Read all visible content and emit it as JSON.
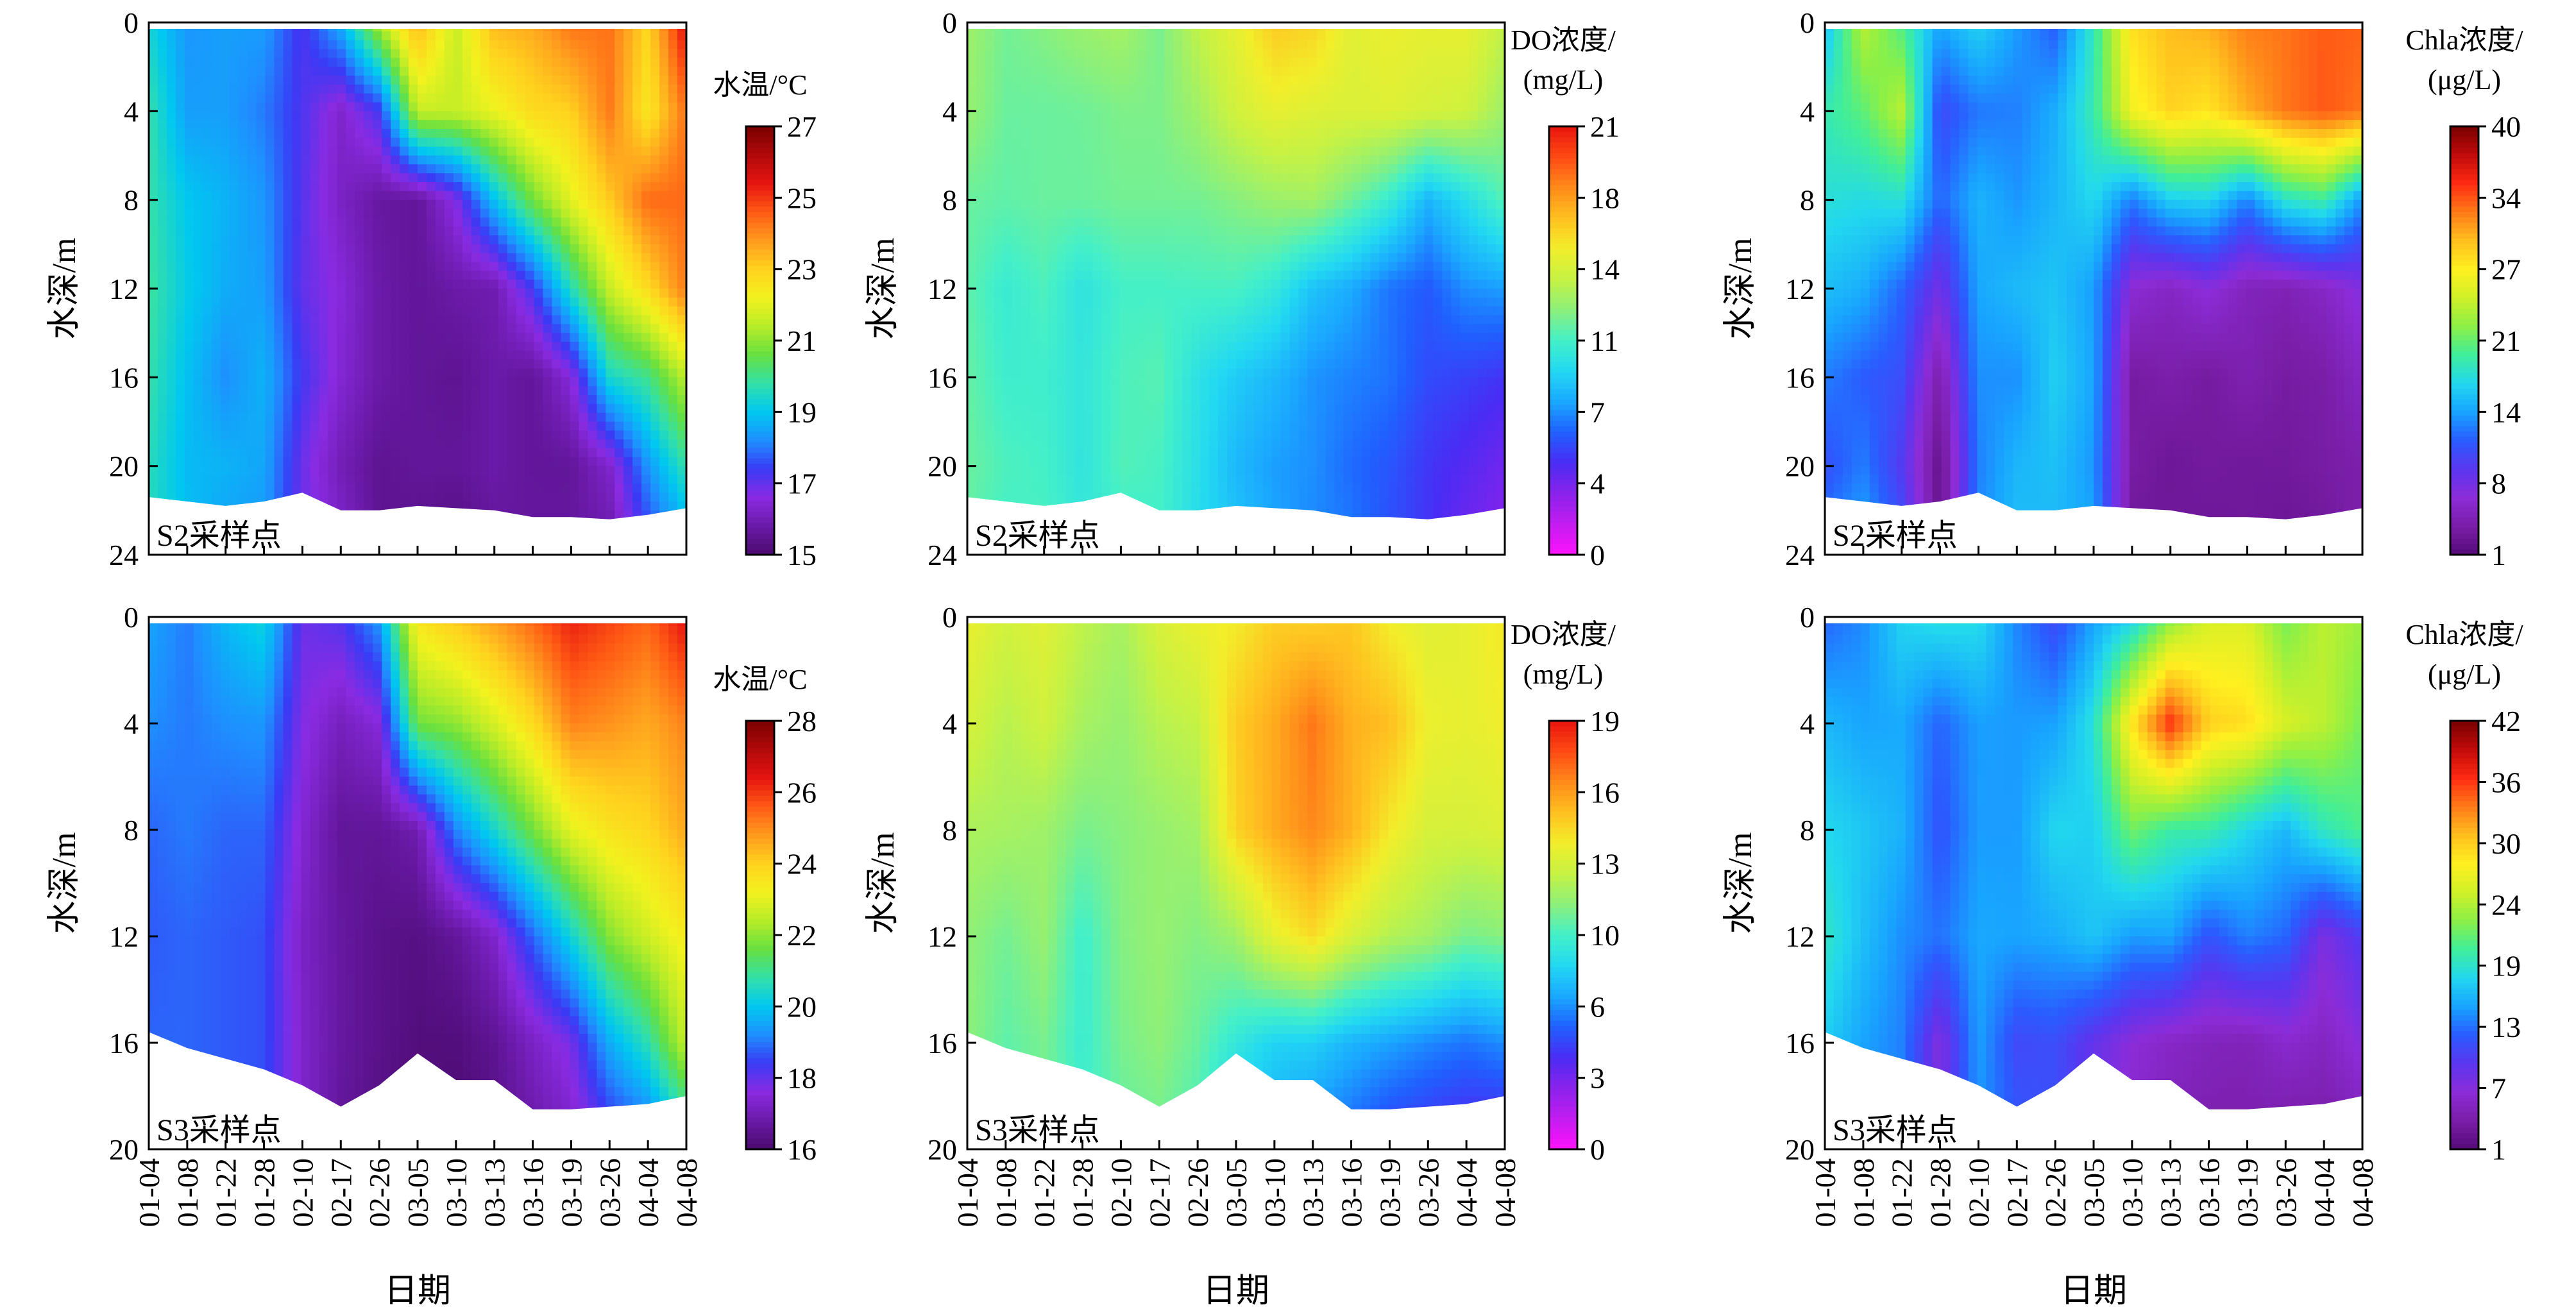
{
  "figure": {
    "x_axis_title": "日期",
    "y_axis_title": "水深/m",
    "dates": [
      "01-04",
      "01-08",
      "01-22",
      "01-28",
      "02-10",
      "02-17",
      "02-26",
      "03-05",
      "03-10",
      "03-13",
      "03-16",
      "03-19",
      "03-26",
      "04-04",
      "04-08"
    ]
  },
  "colormaps": {
    "temperature": [
      "#4b0a6e",
      "#6a1aa8",
      "#8a2be2",
      "#3a3af5",
      "#1e90ff",
      "#00c8f0",
      "#33e0a8",
      "#66e040",
      "#b8ec28",
      "#f2f21e",
      "#ffd21e",
      "#ff9a1e",
      "#ff5a14",
      "#e61410",
      "#b00a0a",
      "#7a0000"
    ],
    "do": [
      "#ff12ff",
      "#c21cf0",
      "#8a22ea",
      "#4a2cf4",
      "#2060ff",
      "#1aa8ff",
      "#22d8f2",
      "#44f0c8",
      "#8cf07a",
      "#c6f244",
      "#f2ee2a",
      "#ffc020",
      "#ff8a1a",
      "#ff4a14",
      "#e8140c"
    ],
    "chla": [
      "#560a78",
      "#7a1ea8",
      "#8c2cd8",
      "#5a36f0",
      "#2a5cff",
      "#18a4ff",
      "#22d8ee",
      "#40ee9a",
      "#8cf046",
      "#d0f028",
      "#fff020",
      "#ffbe1e",
      "#ff7a18",
      "#ff2a12",
      "#c00a0a",
      "#780000"
    ]
  },
  "chart_data": [
    {
      "type": "heatmap",
      "id": "S2-temp",
      "station_label": "S2采样点",
      "variable": "temperature",
      "colorbar_title_lines": [
        "水温/°C"
      ],
      "colorbar_ticks": [
        "15",
        "17",
        "19",
        "21",
        "23",
        "25",
        "27"
      ],
      "zmin": 15,
      "zmax": 27,
      "depth_max": 24,
      "y_ticks": [
        "0",
        "4",
        "8",
        "12",
        "16",
        "20",
        "24"
      ],
      "bottom_depth": [
        21.4,
        21.6,
        21.8,
        21.6,
        21.2,
        22.0,
        22.0,
        21.8,
        21.9,
        22.0,
        22.3,
        22.3,
        22.4,
        22.2,
        21.9
      ],
      "values": [
        [
          19.3,
          18.3,
          18.4,
          18.4,
          17.2,
          18.7,
          21.4,
          23.5,
          21.6,
          23.4,
          23.6,
          24.3,
          24.3,
          22.9,
          25.6
        ],
        [
          19.8,
          18.4,
          18.4,
          18.0,
          17.2,
          16.3,
          17.3,
          21.6,
          21.6,
          22.1,
          22.8,
          23.0,
          24.2,
          22.5,
          24.3
        ],
        [
          19.8,
          19.0,
          18.7,
          18.3,
          17.1,
          16.2,
          15.7,
          15.6,
          16.7,
          18.9,
          20.7,
          22.0,
          23.1,
          24.4,
          24.4
        ],
        [
          19.9,
          19.1,
          18.6,
          18.4,
          17.0,
          16.5,
          15.8,
          15.6,
          15.8,
          15.9,
          17.3,
          19.6,
          21.6,
          22.8,
          24.2
        ],
        [
          19.8,
          18.9,
          18.2,
          18.7,
          17.3,
          16.4,
          15.8,
          15.6,
          15.5,
          15.8,
          15.6,
          16.5,
          19.4,
          20.0,
          21.5
        ],
        [
          19.6,
          18.8,
          18.7,
          18.5,
          16.9,
          16.0,
          15.5,
          15.6,
          15.6,
          15.8,
          15.6,
          15.6,
          16.3,
          18.3,
          19.8
        ],
        [
          19.6,
          18.9,
          18.4,
          18.3,
          16.9,
          16.4,
          15.5,
          15.4,
          15.2,
          15.6,
          15.7,
          15.7,
          15.7,
          17.2,
          18.2
        ]
      ]
    },
    {
      "type": "heatmap",
      "id": "S2-do",
      "station_label": "S2采样点",
      "variable": "do",
      "colorbar_title_lines": [
        "DO浓度/",
        "(mg/L)"
      ],
      "colorbar_ticks": [
        "0",
        "4",
        "7",
        "11",
        "14",
        "18",
        "21"
      ],
      "zmin": 0,
      "zmax": 21,
      "depth_max": 24,
      "y_ticks": [
        "0",
        "4",
        "8",
        "12",
        "16",
        "20",
        "24"
      ],
      "bottom_depth": [
        21.4,
        21.6,
        21.8,
        21.6,
        21.2,
        22.0,
        22.0,
        21.8,
        21.9,
        22.0,
        22.3,
        22.3,
        22.4,
        22.2,
        21.9
      ],
      "values": [
        [
          12.5,
          11.5,
          11.9,
          12.4,
          12.7,
          11.6,
          13.4,
          14.6,
          16.2,
          15.9,
          14.4,
          14.8,
          14.6,
          14.7,
          13.4
        ],
        [
          12.3,
          11.3,
          11.3,
          11.4,
          11.7,
          11.7,
          12.5,
          13.9,
          14.6,
          14.3,
          14.2,
          14.3,
          14.0,
          13.8,
          12.4
        ],
        [
          11.3,
          11.1,
          11.3,
          11.3,
          11.5,
          11.5,
          11.5,
          11.9,
          12.4,
          12.6,
          11.4,
          10.1,
          7.9,
          9.3,
          10.9
        ],
        [
          11.1,
          10.1,
          10.7,
          9.6,
          10.5,
          10.5,
          10.6,
          10.6,
          9.9,
          8.3,
          7.6,
          6.4,
          5.8,
          7.0,
          7.3
        ],
        [
          11.2,
          10.3,
          10.3,
          9.8,
          10.7,
          10.9,
          9.5,
          8.6,
          8.0,
          7.1,
          6.7,
          6.4,
          5.4,
          5.1,
          4.7
        ],
        [
          11.3,
          10.7,
          10.5,
          9.7,
          10.8,
          10.6,
          9.4,
          8.0,
          7.3,
          7.0,
          6.2,
          5.7,
          4.8,
          4.2,
          3.6
        ],
        [
          11.1,
          10.4,
          10.7,
          10.0,
          10.1,
          10.4,
          9.1,
          8.5,
          7.5,
          6.8,
          6.6,
          5.5,
          4.7,
          3.5,
          2.9
        ]
      ]
    },
    {
      "type": "heatmap",
      "id": "S2-chla",
      "station_label": "S2采样点",
      "variable": "chla",
      "colorbar_title_lines": [
        "Chla浓度/",
        "(μg/L)"
      ],
      "colorbar_ticks": [
        "1",
        "8",
        "14",
        "21",
        "27",
        "34",
        "40"
      ],
      "zmin": 1,
      "zmax": 40,
      "depth_max": 24,
      "y_ticks": [
        "0",
        "4",
        "8",
        "12",
        "16",
        "20",
        "24"
      ],
      "bottom_depth": [
        21.4,
        21.6,
        21.8,
        21.6,
        21.2,
        22.0,
        22.0,
        21.8,
        21.9,
        22.0,
        22.3,
        22.3,
        22.4,
        22.2,
        21.9
      ],
      "values": [
        [
          15.1,
          23.6,
          19.6,
          14.2,
          16.5,
          13.8,
          11.2,
          18.2,
          27.9,
          29.7,
          30.3,
          32.1,
          32.4,
          33.2,
          33.0
        ],
        [
          18.5,
          20.2,
          23.5,
          10.2,
          12.4,
          12.7,
          14.5,
          18.6,
          26.3,
          28.5,
          27.6,
          30.2,
          32.3,
          33.3,
          32.4
        ],
        [
          17.3,
          16.9,
          17.3,
          11.7,
          14.8,
          13.5,
          14.9,
          16.7,
          12.6,
          16.1,
          16.5,
          12.8,
          17.6,
          18.9,
          13.4
        ],
        [
          15.3,
          14.5,
          11.7,
          7.5,
          14.2,
          15.1,
          15.6,
          13.8,
          6.0,
          5.1,
          6.5,
          4.6,
          4.3,
          5.2,
          6.9
        ],
        [
          12.6,
          11.3,
          10.5,
          3.8,
          13.3,
          13.3,
          16.2,
          14.1,
          3.3,
          3.8,
          3.2,
          4.1,
          3.3,
          3.6,
          5.1
        ],
        [
          10.7,
          12.6,
          9.1,
          2.0,
          12.7,
          14.9,
          15.4,
          13.5,
          3.4,
          2.7,
          3.1,
          2.9,
          3.0,
          3.4,
          3.8
        ],
        [
          13.0,
          14.9,
          11.0,
          2.1,
          13.2,
          15.5,
          14.9,
          14.4,
          2.6,
          2.9,
          2.6,
          2.9,
          2.4,
          2.8,
          3.8
        ]
      ]
    },
    {
      "type": "heatmap",
      "id": "S3-temp",
      "station_label": "S3采样点",
      "variable": "temperature",
      "colorbar_title_lines": [
        "水温/°C"
      ],
      "colorbar_ticks": [
        "16",
        "18",
        "20",
        "22",
        "24",
        "26",
        "28"
      ],
      "zmin": 16,
      "zmax": 28,
      "depth_max": 20,
      "y_ticks": [
        "0",
        "4",
        "8",
        "12",
        "16",
        "20"
      ],
      "bottom_depth": [
        15.6,
        16.2,
        16.6,
        17.0,
        17.6,
        18.4,
        17.6,
        16.4,
        17.4,
        17.4,
        18.5,
        18.5,
        18.4,
        18.3,
        18.0
      ],
      "values": [
        [
          19.5,
          19.0,
          19.8,
          20.3,
          17.9,
          18.2,
          19.4,
          23.6,
          24.2,
          24.8,
          25.5,
          26.3,
          25.9,
          25.5,
          26.5
        ],
        [
          19.2,
          19.0,
          19.2,
          19.3,
          17.7,
          17.1,
          17.5,
          21.7,
          22.0,
          22.8,
          23.8,
          25.1,
          24.9,
          24.6,
          25.1
        ],
        [
          18.8,
          19.0,
          18.8,
          18.8,
          17.4,
          16.6,
          16.6,
          16.9,
          19.1,
          20.4,
          21.7,
          23.0,
          23.6,
          23.9,
          24.6
        ],
        [
          18.7,
          18.8,
          18.7,
          18.6,
          17.2,
          16.7,
          16.4,
          16.3,
          16.6,
          17.3,
          18.8,
          20.3,
          21.9,
          22.7,
          23.4
        ],
        [
          18.8,
          18.8,
          18.7,
          18.6,
          17.3,
          16.7,
          16.4,
          16.2,
          16.2,
          16.5,
          17.2,
          17.8,
          19.6,
          20.7,
          22.6
        ],
        [
          18.9,
          18.8,
          18.7,
          18.6,
          17.3,
          16.6,
          16.3,
          16.2,
          16.0,
          16.3,
          16.7,
          17.1,
          17.9,
          18.4,
          19.9
        ]
      ]
    },
    {
      "type": "heatmap",
      "id": "S3-do",
      "station_label": "S3采样点",
      "variable": "do",
      "colorbar_title_lines": [
        "DO浓度/",
        "(mg/L)"
      ],
      "colorbar_ticks": [
        "0",
        "3",
        "6",
        "10",
        "13",
        "16",
        "19"
      ],
      "zmin": 0,
      "zmax": 19,
      "depth_max": 20,
      "y_ticks": [
        "0",
        "4",
        "8",
        "12",
        "16",
        "20"
      ],
      "bottom_depth": [
        15.6,
        16.2,
        16.6,
        17.0,
        17.6,
        18.4,
        17.6,
        16.4,
        17.4,
        17.4,
        18.5,
        18.5,
        18.4,
        18.3,
        18.0
      ],
      "values": [
        [
          13.3,
          12.6,
          13.0,
          12.1,
          11.5,
          12.8,
          13.4,
          13.6,
          14.5,
          14.4,
          14.7,
          13.5,
          13.0,
          13.2,
          13.8
        ],
        [
          12.7,
          11.9,
          12.5,
          11.5,
          11.1,
          11.9,
          12.2,
          14.6,
          15.5,
          16.7,
          15.3,
          15.0,
          13.4,
          13.2,
          13.5
        ],
        [
          11.6,
          11.5,
          11.3,
          10.5,
          10.8,
          11.1,
          11.4,
          14.4,
          15.5,
          16.3,
          15.3,
          13.7,
          12.7,
          12.7,
          12.9
        ],
        [
          11.0,
          10.4,
          11.1,
          9.3,
          10.7,
          11.1,
          10.7,
          11.3,
          13.2,
          14.1,
          12.7,
          11.8,
          11.4,
          10.5,
          10.8
        ],
        [
          10.9,
          10.0,
          10.5,
          9.2,
          10.5,
          10.9,
          10.2,
          8.9,
          8.0,
          7.9,
          7.1,
          6.7,
          6.2,
          5.8,
          6.3
        ],
        [
          11.0,
          10.2,
          10.4,
          9.5,
          10.0,
          10.3,
          9.5,
          7.3,
          6.7,
          5.8,
          5.3,
          4.3,
          3.9,
          3.5,
          3.2
        ]
      ]
    },
    {
      "type": "heatmap",
      "id": "S3-chla",
      "station_label": "S3采样点",
      "variable": "chla",
      "colorbar_title_lines": [
        "Chla浓度/",
        "(μg/L)"
      ],
      "colorbar_ticks": [
        "1",
        "7",
        "13",
        "19",
        "24",
        "30",
        "36",
        "42"
      ],
      "zmin": 1,
      "zmax": 42,
      "depth_max": 20,
      "y_ticks": [
        "0",
        "4",
        "8",
        "12",
        "16",
        "20"
      ],
      "bottom_depth": [
        15.6,
        16.2,
        16.6,
        17.0,
        17.6,
        18.4,
        17.6,
        16.4,
        17.4,
        17.4,
        18.5,
        18.5,
        18.4,
        18.3,
        18.0
      ],
      "values": [
        [
          12.2,
          13.7,
          17.2,
          18.1,
          17.9,
          13.5,
          10.6,
          14.6,
          17.0,
          22.4,
          26.0,
          26.1,
          22.0,
          24.8,
          23.5
        ],
        [
          15.7,
          14.7,
          15.0,
          12.2,
          14.5,
          14.3,
          14.6,
          18.2,
          29.0,
          36.4,
          30.1,
          29.4,
          26.0,
          24.8,
          22.0
        ],
        [
          17.4,
          16.5,
          15.4,
          11.3,
          14.4,
          14.4,
          17.4,
          17.0,
          21.9,
          19.7,
          19.6,
          17.4,
          15.7,
          19.0,
          20.6
        ],
        [
          18.8,
          16.1,
          13.9,
          12.8,
          14.9,
          14.7,
          15.1,
          16.4,
          14.4,
          14.7,
          11.3,
          13.4,
          12.3,
          7.4,
          9.8
        ],
        [
          16.8,
          14.7,
          13.3,
          7.0,
          14.6,
          10.6,
          10.9,
          8.6,
          6.5,
          5.4,
          4.9,
          4.6,
          5.9,
          5.2,
          6.9
        ],
        [
          15.6,
          13.8,
          13.6,
          7.1,
          13.9,
          11.8,
          10.9,
          8.1,
          5.5,
          4.7,
          3.8,
          4.1,
          3.2,
          3.4,
          3.9
        ]
      ]
    }
  ]
}
